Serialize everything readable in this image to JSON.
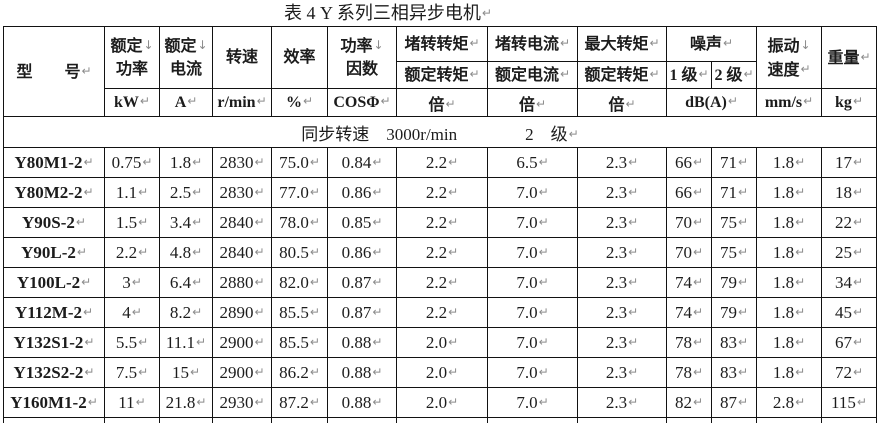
{
  "title": "表 4 Y 系列三相异步电机↵",
  "marks": {
    "cell_end": "↵",
    "line_break": "↓"
  },
  "table": {
    "header": {
      "model": "型　　号↵",
      "rated_power": "额定↓\n功率",
      "rated_current": "额定↓\n电流",
      "speed": "转速",
      "efficiency": "效率",
      "power_factor": "功率↓\n因数",
      "locked_torque_num": "堵转转矩↵",
      "locked_torque_den": "额定转矩↵",
      "locked_current_num": "堵转电流↵",
      "locked_current_den": "额定电流↵",
      "max_torque_num": "最大转矩↵",
      "max_torque_den": "额定转矩↵",
      "noise": "噪声↵",
      "noise_grade1": "1 级↵",
      "noise_grade2": "2 级↵",
      "vibration": "振动↓\n速度↵",
      "weight": "重量↵",
      "units": {
        "power": "kW↵",
        "current": "A↵",
        "speed": "r/min↵",
        "efficiency": "%↵",
        "power_factor": "COSΦ↵",
        "locked_torque": "倍↵",
        "locked_current": "倍↵",
        "max_torque": "倍↵",
        "noise": "dB(A)↵",
        "vibration": "mm/s↵",
        "weight": "kg↵"
      }
    },
    "sync_row": "同步转速　3000r/min　　　　2　级↵",
    "rows": [
      [
        "Y80M1-2",
        "0.75",
        "1.8",
        "2830",
        "75.0",
        "0.84",
        "2.2",
        "6.5",
        "2.3",
        "66",
        "71",
        "1.8",
        "17"
      ],
      [
        "Y80M2-2",
        "1.1",
        "2.5",
        "2830",
        "77.0",
        "0.86",
        "2.2",
        "7.0",
        "2.3",
        "66",
        "71",
        "1.8",
        "18"
      ],
      [
        "Y90S-2",
        "1.5",
        "3.4",
        "2840",
        "78.0",
        "0.85",
        "2.2",
        "7.0",
        "2.3",
        "70",
        "75",
        "1.8",
        "22"
      ],
      [
        "Y90L-2",
        "2.2",
        "4.8",
        "2840",
        "80.5",
        "0.86",
        "2.2",
        "7.0",
        "2.3",
        "70",
        "75",
        "1.8",
        "25"
      ],
      [
        "Y100L-2",
        "3",
        "6.4",
        "2880",
        "82.0",
        "0.87",
        "2.2",
        "7.0",
        "2.3",
        "74",
        "79",
        "1.8",
        "34"
      ],
      [
        "Y112M-2",
        "4",
        "8.2",
        "2890",
        "85.5",
        "0.87",
        "2.2",
        "7.0",
        "2.3",
        "74",
        "79",
        "1.8",
        "45"
      ],
      [
        "Y132S1-2",
        "5.5",
        "11.1",
        "2900",
        "85.5",
        "0.88",
        "2.0",
        "7.0",
        "2.3",
        "78",
        "83",
        "1.8",
        "67"
      ],
      [
        "Y132S2-2",
        "7.5",
        "15",
        "2900",
        "86.2",
        "0.88",
        "2.0",
        "7.0",
        "2.3",
        "78",
        "83",
        "1.8",
        "72"
      ],
      [
        "Y160M1-2",
        "11",
        "21.8",
        "2930",
        "87.2",
        "0.88",
        "2.0",
        "7.0",
        "2.3",
        "82",
        "87",
        "2.8",
        "115"
      ]
    ]
  }
}
